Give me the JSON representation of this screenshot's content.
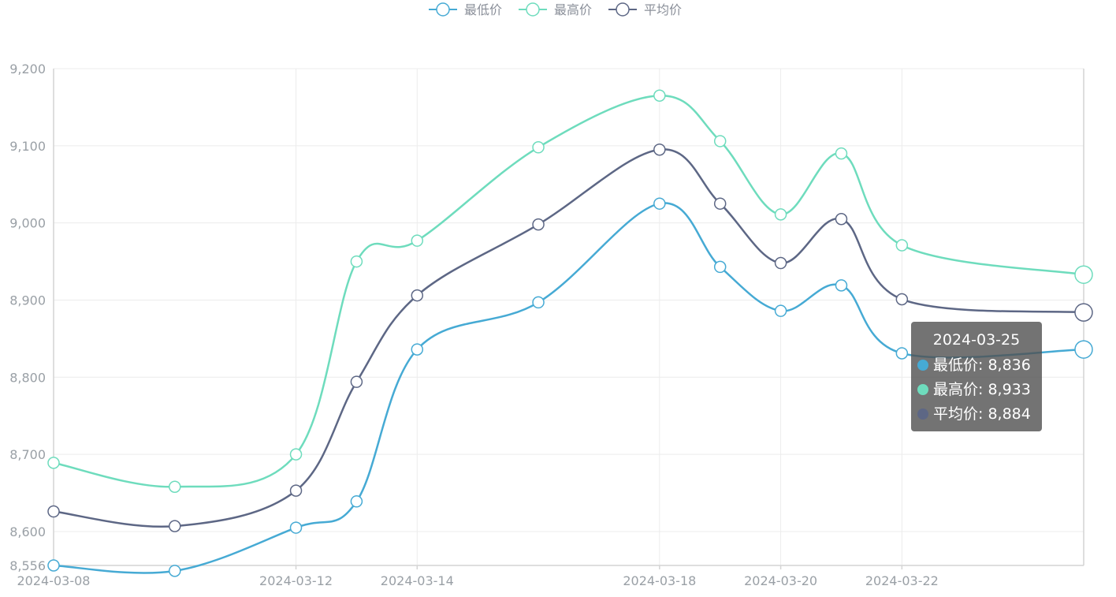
{
  "chart_data": {
    "type": "line",
    "smooth": true,
    "x": [
      "2024-03-08",
      "2024-03-10",
      "2024-03-12",
      "2024-03-13",
      "2024-03-14",
      "2024-03-16",
      "2024-03-18",
      "2024-03-19",
      "2024-03-20",
      "2024-03-21",
      "2024-03-22",
      "2024-03-25"
    ],
    "x_tick_labels": [
      "2024-03-08",
      "2024-03-12",
      "2024-03-14",
      "2024-03-18",
      "2024-03-20",
      "2024-03-22"
    ],
    "series": [
      {
        "name": "最低价",
        "color": "#46aad4",
        "values": [
          8556,
          8549,
          8605,
          8639,
          8836,
          8897,
          9025,
          8943,
          8886,
          8919,
          8831,
          8836
        ]
      },
      {
        "name": "最高价",
        "color": "#6edcbd",
        "values": [
          8689,
          8658,
          8700,
          8950,
          8977,
          9098,
          9165,
          9106,
          9011,
          9090,
          8971,
          8933
        ]
      },
      {
        "name": "平均价",
        "color": "#5d6785",
        "values": [
          8626,
          8607,
          8653,
          8794,
          8906,
          8998,
          9095,
          9025,
          8948,
          9005,
          8901,
          8884
        ]
      }
    ],
    "y_ticks": [
      "8,556",
      "8,600",
      "8,700",
      "8,800",
      "8,900",
      "9,000",
      "9,100",
      "9,200"
    ],
    "y_tick_values": [
      8556,
      8600,
      8700,
      8800,
      8900,
      9000,
      9100,
      9200
    ],
    "ylim": [
      8556,
      9200
    ],
    "grid": true,
    "legend_position": "top-center"
  },
  "legend": {
    "items": [
      {
        "label": "最低价",
        "color": "#46aad4"
      },
      {
        "label": "最高价",
        "color": "#6edcbd"
      },
      {
        "label": "平均价",
        "color": "#5d6785"
      }
    ]
  },
  "tooltip": {
    "title": "2024-03-25",
    "rows": [
      {
        "text": "最低价: 8,836",
        "color": "#46aad4"
      },
      {
        "text": "最高价: 8,933",
        "color": "#6edcbd"
      },
      {
        "text": "平均价: 8,884",
        "color": "#5d6785"
      }
    ]
  }
}
